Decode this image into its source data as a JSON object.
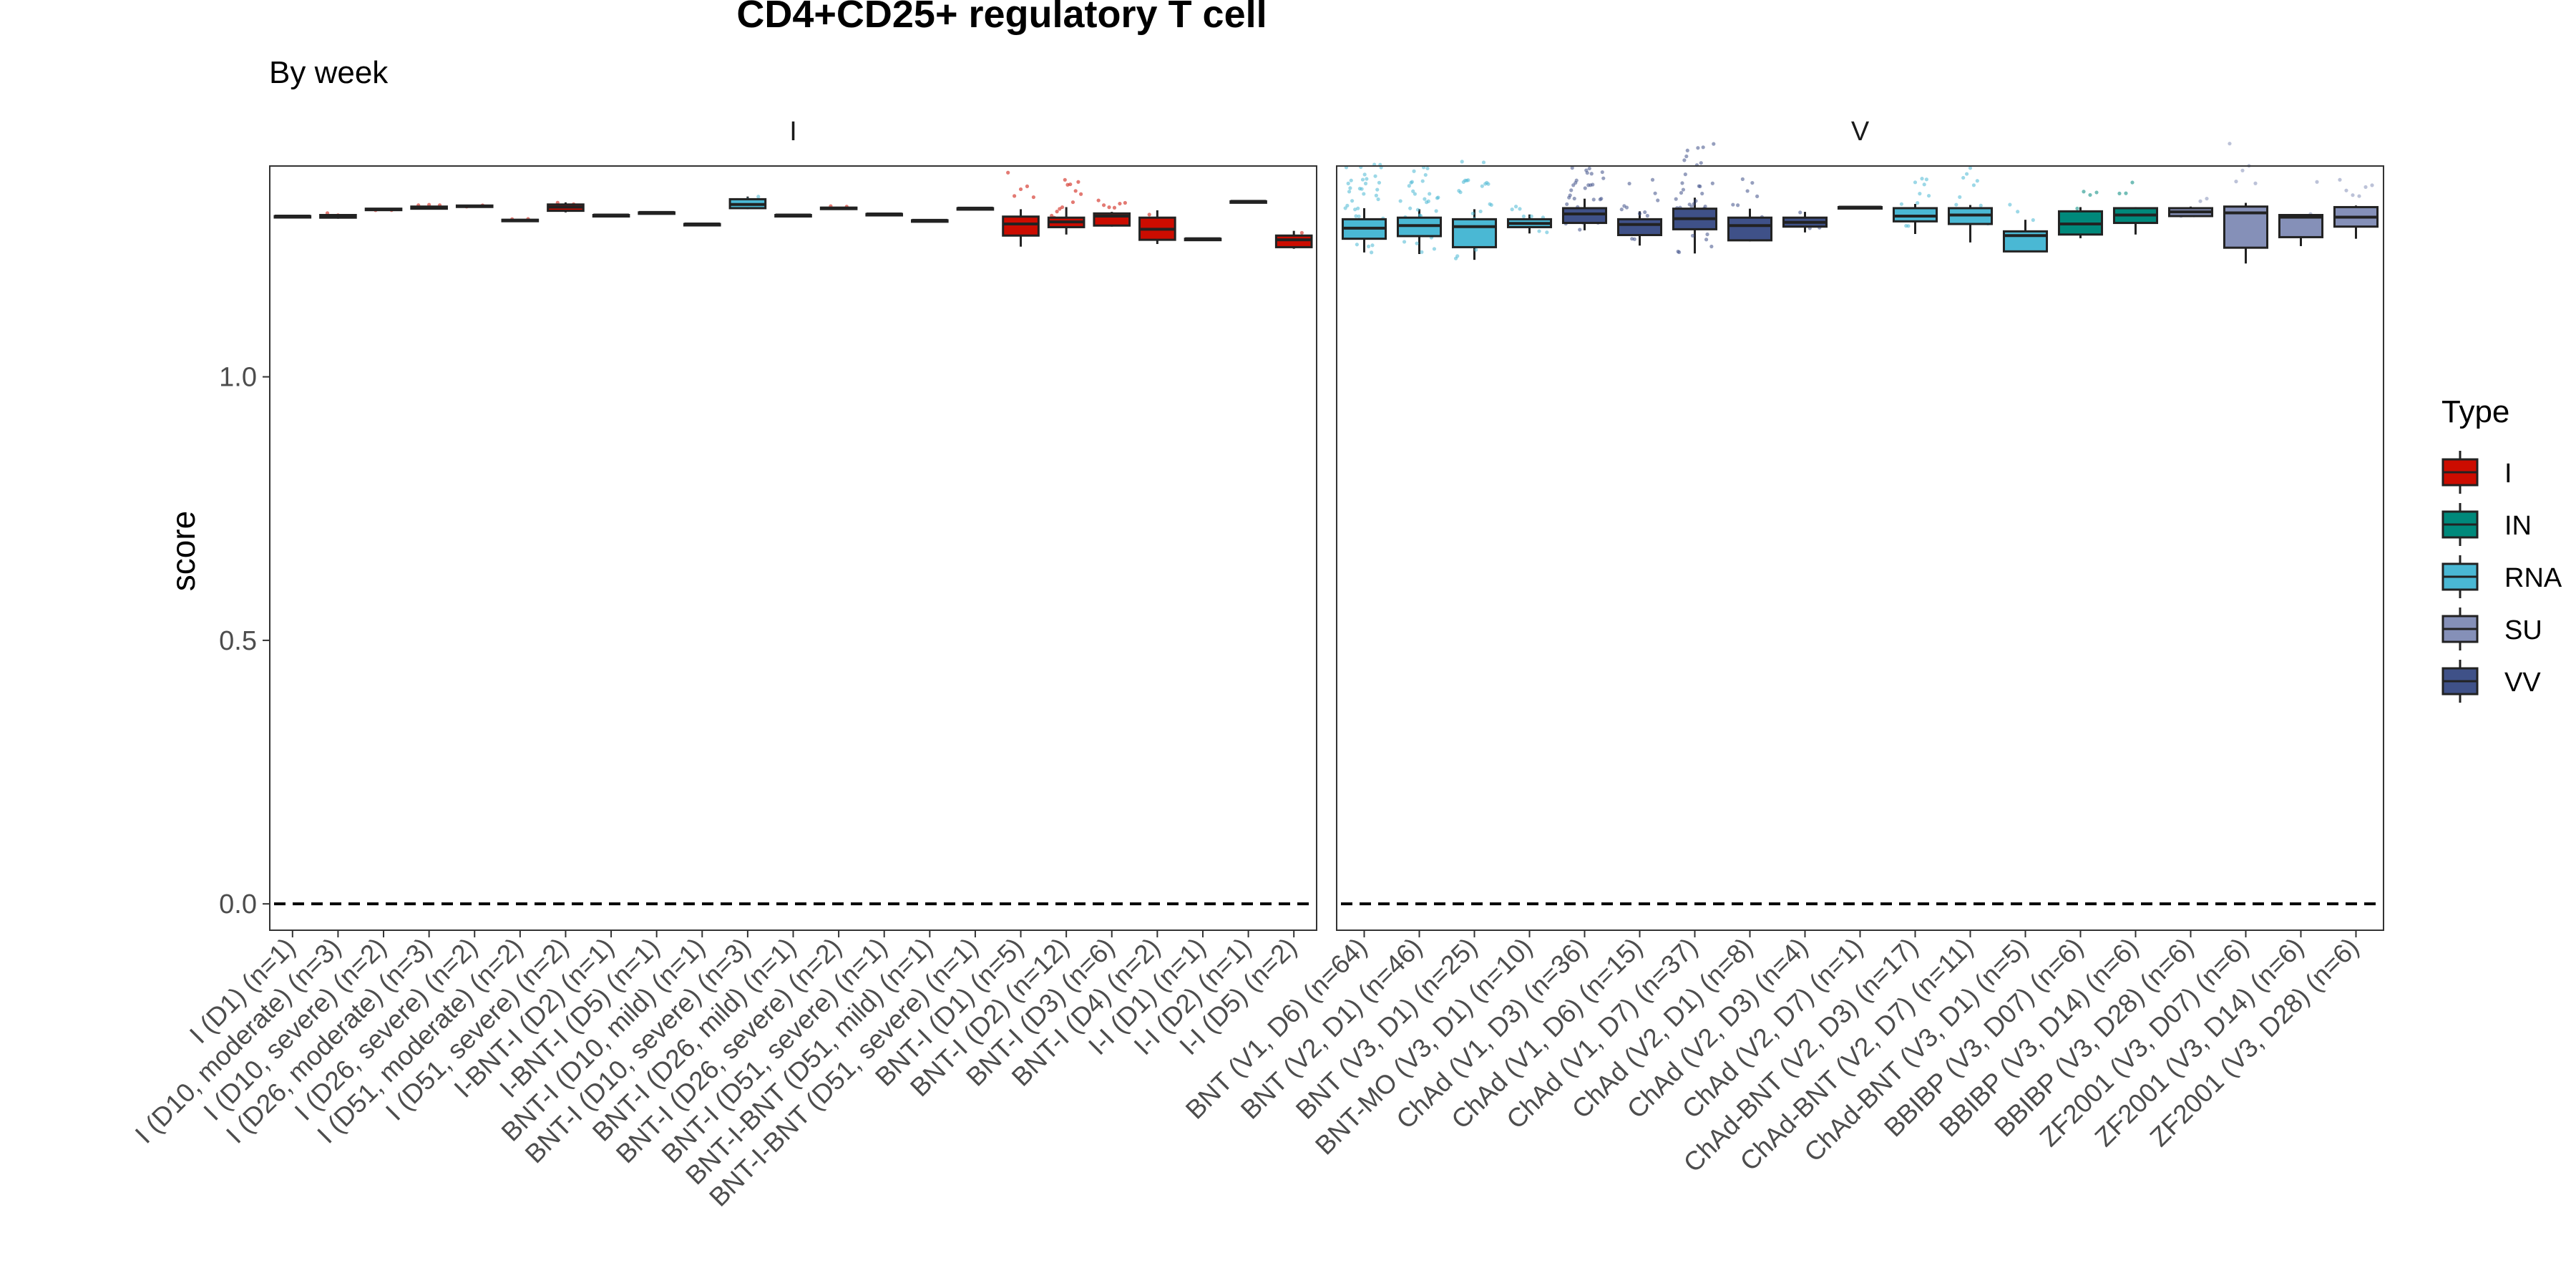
{
  "chart_data": {
    "type": "boxplot",
    "title": "CD4+CD25+ regulatory T cell",
    "subtitle": "By week",
    "ylabel": "score",
    "xlabel": "",
    "ylim": [
      -0.05,
      1.4
    ],
    "yticks": [
      {
        "value": 0.0,
        "label": "0.0"
      },
      {
        "value": 0.5,
        "label": "0.5"
      },
      {
        "value": 1.0,
        "label": "1.0"
      }
    ],
    "reference_line": 0,
    "grid": false,
    "legend": {
      "title": "Type",
      "position": "right",
      "items": [
        {
          "name": "I",
          "color": "#cc0c00"
        },
        {
          "name": "IN",
          "color": "#00897b"
        },
        {
          "name": "RNA",
          "color": "#4ab8d4"
        },
        {
          "name": "SU",
          "color": "#8590b8"
        },
        {
          "name": "VV",
          "color": "#3f5188"
        }
      ]
    },
    "panels": [
      {
        "strip": "I",
        "groups": [
          {
            "label": "I (D1) (n=1)",
            "type": "I",
            "n": 1,
            "min": 1.305,
            "q1": 1.305,
            "median": 1.305,
            "q3": 1.305,
            "max": 1.305
          },
          {
            "label": "I (D10, moderate) (n=3)",
            "type": "I",
            "n": 3,
            "min": 1.3,
            "q1": 1.302,
            "median": 1.305,
            "q3": 1.307,
            "max": 1.309
          },
          {
            "label": "I (D10, severe) (n=2)",
            "type": "I",
            "n": 2,
            "min": 1.316,
            "q1": 1.317,
            "median": 1.318,
            "q3": 1.319,
            "max": 1.32
          },
          {
            "label": "I (D26, moderate) (n=3)",
            "type": "I",
            "n": 3,
            "min": 1.318,
            "q1": 1.319,
            "median": 1.321,
            "q3": 1.323,
            "max": 1.324
          },
          {
            "label": "I (D26, severe) (n=2)",
            "type": "I",
            "n": 2,
            "min": 1.322,
            "q1": 1.323,
            "median": 1.324,
            "q3": 1.325,
            "max": 1.326
          },
          {
            "label": "I (D51, moderate) (n=2)",
            "type": "I",
            "n": 2,
            "min": 1.295,
            "q1": 1.296,
            "median": 1.297,
            "q3": 1.298,
            "max": 1.299
          },
          {
            "label": "I (D51, severe) (n=2)",
            "type": "I",
            "n": 2,
            "min": 1.312,
            "q1": 1.315,
            "median": 1.322,
            "q3": 1.327,
            "max": 1.331
          },
          {
            "label": "I-BNT-I (D2) (n=1)",
            "type": "I",
            "n": 1,
            "min": 1.307,
            "q1": 1.307,
            "median": 1.307,
            "q3": 1.307,
            "max": 1.307
          },
          {
            "label": "I-BNT-I (D5) (n=1)",
            "type": "I",
            "n": 1,
            "min": 1.312,
            "q1": 1.312,
            "median": 1.312,
            "q3": 1.312,
            "max": 1.312
          },
          {
            "label": "BNT-I (D10, mild) (n=1)",
            "type": "I",
            "n": 1,
            "min": 1.29,
            "q1": 1.29,
            "median": 1.29,
            "q3": 1.29,
            "max": 1.29
          },
          {
            "label": "BNT-I (D10, severe) (n=3)",
            "type": "RNA",
            "n": 3,
            "min": 1.318,
            "q1": 1.32,
            "median": 1.327,
            "q3": 1.337,
            "max": 1.342
          },
          {
            "label": "BNT-I (D26, mild) (n=1)",
            "type": "I",
            "n": 1,
            "min": 1.307,
            "q1": 1.307,
            "median": 1.307,
            "q3": 1.307,
            "max": 1.307
          },
          {
            "label": "BNT-I (D26, severe) (n=2)",
            "type": "I",
            "n": 2,
            "min": 1.318,
            "q1": 1.319,
            "median": 1.32,
            "q3": 1.321,
            "max": 1.322
          },
          {
            "label": "BNT-I (D51, severe) (n=1)",
            "type": "I",
            "n": 1,
            "min": 1.309,
            "q1": 1.309,
            "median": 1.309,
            "q3": 1.309,
            "max": 1.309
          },
          {
            "label": "BNT-I-BNT (D51, mild) (n=1)",
            "type": "I",
            "n": 1,
            "min": 1.297,
            "q1": 1.297,
            "median": 1.297,
            "q3": 1.297,
            "max": 1.297
          },
          {
            "label": "BNT-I-BNT (D51, severe) (n=1)",
            "type": "I",
            "n": 1,
            "min": 1.32,
            "q1": 1.32,
            "median": 1.32,
            "q3": 1.32,
            "max": 1.32
          },
          {
            "label": "BNT-I (D1) (n=5)",
            "type": "I",
            "n": 5,
            "min": 1.247,
            "q1": 1.268,
            "median": 1.29,
            "q3": 1.304,
            "max": 1.318
          },
          {
            "label": "BNT-I (D2) (n=12)",
            "type": "I",
            "n": 12,
            "min": 1.27,
            "q1": 1.284,
            "median": 1.294,
            "q3": 1.302,
            "max": 1.322
          },
          {
            "label": "BNT-I (D3) (n=6)",
            "type": "I",
            "n": 6,
            "min": 1.285,
            "q1": 1.287,
            "median": 1.305,
            "q3": 1.31,
            "max": 1.313
          },
          {
            "label": "BNT-I (D4) (n=2)",
            "type": "I",
            "n": 2,
            "min": 1.252,
            "q1": 1.26,
            "median": 1.28,
            "q3": 1.302,
            "max": 1.316
          },
          {
            "label": "I-I (D1) (n=1)",
            "type": "I",
            "n": 1,
            "min": 1.262,
            "q1": 1.262,
            "median": 1.262,
            "q3": 1.262,
            "max": 1.262
          },
          {
            "label": "I-I (D2) (n=1)",
            "type": "I",
            "n": 1,
            "min": 1.333,
            "q1": 1.333,
            "median": 1.333,
            "q3": 1.333,
            "max": 1.333
          },
          {
            "label": "I-I (D5) (n=2)",
            "type": "I",
            "n": 2,
            "min": 1.243,
            "q1": 1.246,
            "median": 1.26,
            "q3": 1.268,
            "max": 1.277
          }
        ]
      },
      {
        "strip": "V",
        "groups": [
          {
            "label": "BNT (V1, D6) (n=64)",
            "type": "RNA",
            "n": 64,
            "min": 1.236,
            "q1": 1.262,
            "median": 1.282,
            "q3": 1.299,
            "max": 1.32
          },
          {
            "label": "BNT (V2, D1) (n=46)",
            "type": "RNA",
            "n": 46,
            "min": 1.233,
            "q1": 1.267,
            "median": 1.287,
            "q3": 1.302,
            "max": 1.318
          },
          {
            "label": "BNT (V3, D1) (n=25)",
            "type": "RNA",
            "n": 25,
            "min": 1.222,
            "q1": 1.246,
            "median": 1.285,
            "q3": 1.299,
            "max": 1.318
          },
          {
            "label": "BNT-MO (V3, D1) (n=10)",
            "type": "RNA",
            "n": 10,
            "min": 1.272,
            "q1": 1.284,
            "median": 1.291,
            "q3": 1.299,
            "max": 1.308
          },
          {
            "label": "ChAd (V1, D3) (n=36)",
            "type": "VV",
            "n": 36,
            "min": 1.278,
            "q1": 1.292,
            "median": 1.309,
            "q3": 1.32,
            "max": 1.338
          },
          {
            "label": "ChAd (V1, D6) (n=15)",
            "type": "VV",
            "n": 15,
            "min": 1.249,
            "q1": 1.269,
            "median": 1.289,
            "q3": 1.299,
            "max": 1.314
          },
          {
            "label": "ChAd (V1, D7) (n=37)",
            "type": "VV",
            "n": 37,
            "min": 1.234,
            "q1": 1.28,
            "median": 1.3,
            "q3": 1.319,
            "max": 1.34
          },
          {
            "label": "ChAd (V2, D1) (n=8)",
            "type": "VV",
            "n": 8,
            "min": 1.257,
            "q1": 1.259,
            "median": 1.287,
            "q3": 1.302,
            "max": 1.319
          },
          {
            "label": "ChAd (V2, D3) (n=4)",
            "type": "VV",
            "n": 4,
            "min": 1.274,
            "q1": 1.285,
            "median": 1.293,
            "q3": 1.302,
            "max": 1.313
          },
          {
            "label": "ChAd (V2, D7) (n=1)",
            "type": "VV",
            "n": 1,
            "min": 1.322,
            "q1": 1.322,
            "median": 1.322,
            "q3": 1.322,
            "max": 1.322
          },
          {
            "label": "ChAd-BNT (V2, D3) (n=17)",
            "type": "RNA",
            "n": 17,
            "min": 1.271,
            "q1": 1.295,
            "median": 1.305,
            "q3": 1.32,
            "max": 1.328
          },
          {
            "label": "ChAd-BNT (V2, D7) (n=11)",
            "type": "RNA",
            "n": 11,
            "min": 1.255,
            "q1": 1.29,
            "median": 1.307,
            "q3": 1.32,
            "max": 1.326
          },
          {
            "label": "ChAd-BNT (V3, D1) (n=5)",
            "type": "RNA",
            "n": 5,
            "min": 1.238,
            "q1": 1.238,
            "median": 1.268,
            "q3": 1.276,
            "max": 1.298
          },
          {
            "label": "BBIBP (V3, D07) (n=6)",
            "type": "IN",
            "n": 6,
            "min": 1.263,
            "q1": 1.27,
            "median": 1.29,
            "q3": 1.314,
            "max": 1.322
          },
          {
            "label": "BBIBP (V3, D14) (n=6)",
            "type": "IN",
            "n": 6,
            "min": 1.27,
            "q1": 1.292,
            "median": 1.307,
            "q3": 1.32,
            "max": 1.322
          },
          {
            "label": "BBIBP (V3, D28) (n=6)",
            "type": "SU",
            "n": 6,
            "min": 1.303,
            "q1": 1.305,
            "median": 1.313,
            "q3": 1.32,
            "max": 1.323
          },
          {
            "label": "ZF2001 (V3, D07) (n=6)",
            "type": "SU",
            "n": 6,
            "min": 1.215,
            "q1": 1.245,
            "median": 1.311,
            "q3": 1.323,
            "max": 1.33
          },
          {
            "label": "ZF2001 (V3, D14) (n=6)",
            "type": "SU",
            "n": 6,
            "min": 1.248,
            "q1": 1.265,
            "median": 1.303,
            "q3": 1.307,
            "max": 1.309
          },
          {
            "label": "ZF2001 (V3, D28) (n=6)",
            "type": "SU",
            "n": 6,
            "min": 1.262,
            "q1": 1.285,
            "median": 1.303,
            "q3": 1.322,
            "max": 1.325
          }
        ]
      }
    ]
  }
}
